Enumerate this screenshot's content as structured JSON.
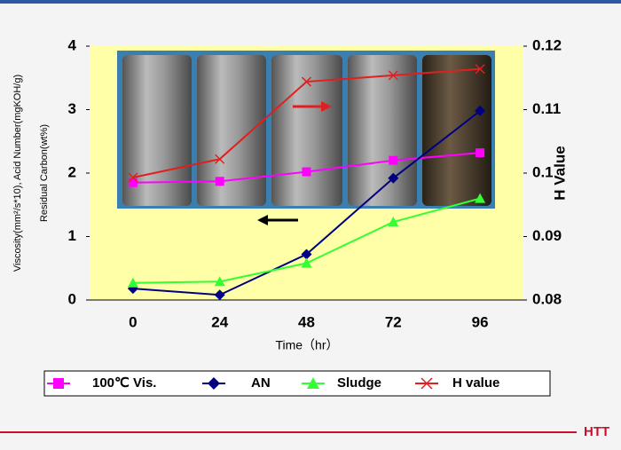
{
  "chart_data": {
    "type": "line",
    "x_label": "Time（hr）",
    "y_label_lines": [
      "Viscosity(mm²/s*10), Acid Number(mgKOH/g)",
      "Residual Carbon(wt%)"
    ],
    "y2_label": "H Value",
    "categories": [
      "0",
      "24",
      "48",
      "72",
      "96"
    ],
    "series": [
      {
        "name": "100℃ Vis.",
        "color": "#ff00ff",
        "marker": "square",
        "values": [
          1.85,
          1.87,
          2.02,
          2.2,
          2.32
        ]
      },
      {
        "name": "AN",
        "color": "#000080",
        "marker": "diamond",
        "values": [
          0.18,
          0.08,
          0.72,
          1.92,
          2.98
        ]
      },
      {
        "name": "Sludge",
        "color": "#33ff33",
        "marker": "triangle",
        "values": [
          0.27,
          0.29,
          0.58,
          1.23,
          1.6
        ]
      },
      {
        "name": "H value",
        "color": "#e02020",
        "marker": "x",
        "axis": "y2",
        "values": [
          0.0993,
          0.1022,
          0.1144,
          0.1154,
          0.1164
        ]
      }
    ],
    "ylim": [
      0,
      4
    ],
    "yticks": [
      0,
      1,
      2,
      3,
      4
    ],
    "y2lim": [
      0.08,
      0.12
    ],
    "y2ticks": [
      0.08,
      0.09,
      0.1,
      0.11,
      0.12
    ],
    "legend": "bottom"
  },
  "logo": "HTT"
}
